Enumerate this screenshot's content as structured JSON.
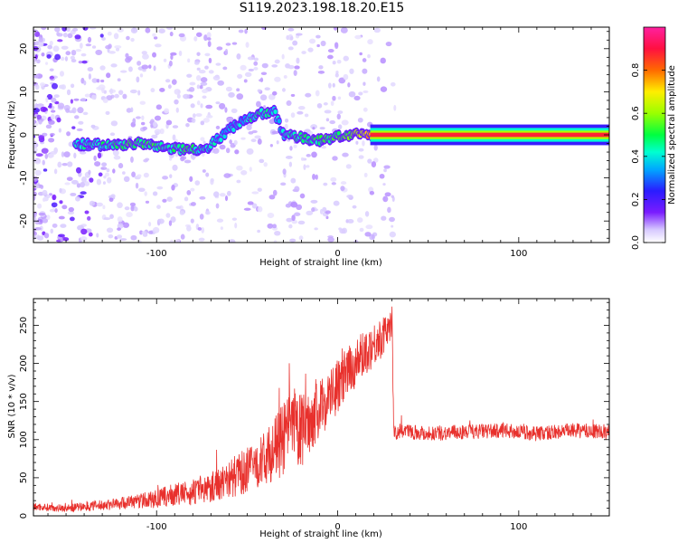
{
  "title": "S119.2023.198.18.20.E15",
  "colors": {
    "snr_line": "#e8302c",
    "carrier_core": "#ff2a55"
  },
  "chart_data": [
    {
      "type": "heatmap",
      "xlabel": "Height of straight line (km)",
      "ylabel": "Frequency (Hz)",
      "xlim": [
        -168,
        150
      ],
      "ylim": [
        -25,
        25
      ],
      "xticks": [
        -100,
        0,
        100
      ],
      "yticks": [
        -20,
        -10,
        0,
        10,
        20
      ],
      "colorbar": {
        "label": "Normalized spectral amplitude",
        "range": [
          0,
          1
        ],
        "ticks": [
          0.0,
          0.2,
          0.4,
          0.6,
          0.8
        ]
      },
      "ridge": [
        {
          "x": -142,
          "f": -2.2,
          "a": 0.35
        },
        {
          "x": -125,
          "f": -2.4,
          "a": 0.4
        },
        {
          "x": -110,
          "f": -2.0,
          "a": 0.45
        },
        {
          "x": -95,
          "f": -3.0,
          "a": 0.4
        },
        {
          "x": -82,
          "f": -3.4,
          "a": 0.42
        },
        {
          "x": -72,
          "f": -3.0,
          "a": 0.35
        },
        {
          "x": -62,
          "f": 0.5,
          "a": 0.3
        },
        {
          "x": -52,
          "f": 3.5,
          "a": 0.32
        },
        {
          "x": -42,
          "f": 5.0,
          "a": 0.4
        },
        {
          "x": -35,
          "f": 5.5,
          "a": 0.3
        },
        {
          "x": -30,
          "f": 0.0,
          "a": 0.35
        },
        {
          "x": -20,
          "f": -0.5,
          "a": 0.4
        },
        {
          "x": -12,
          "f": -1.5,
          "a": 0.42
        },
        {
          "x": -2,
          "f": -0.5,
          "a": 0.45
        },
        {
          "x": 8,
          "f": 0.0,
          "a": 0.5
        },
        {
          "x": 18,
          "f": 0.0,
          "a": 0.7
        },
        {
          "x": 30,
          "f": 0.0,
          "a": 0.85
        },
        {
          "x": 150,
          "f": 0.0,
          "a": 0.85
        }
      ]
    },
    {
      "type": "line",
      "xlabel": "Height of straight line (km)",
      "ylabel": "SNR (10 * v/v)",
      "xlim": [
        -168,
        150
      ],
      "ylim": [
        0,
        285
      ],
      "xticks": [
        -100,
        0,
        100
      ],
      "yticks": [
        0,
        50,
        100,
        150,
        200,
        250
      ],
      "series": [
        {
          "x": [
            -168,
            -150,
            -130,
            -115,
            -100,
            -90,
            -80,
            -70,
            -60,
            -50,
            -40,
            -32,
            -25,
            -20,
            -15,
            -10,
            -5,
            0,
            5,
            10,
            15,
            20,
            25,
            30,
            31,
            32,
            33,
            35,
            50,
            70,
            90,
            110,
            130,
            150
          ],
          "y": [
            12,
            10,
            14,
            18,
            22,
            28,
            30,
            38,
            48,
            60,
            75,
            95,
            115,
            110,
            125,
            140,
            155,
            170,
            185,
            200,
            215,
            225,
            235,
            255,
            110,
            108,
            110,
            112,
            108,
            110,
            112,
            108,
            112,
            110
          ],
          "noise": [
            5,
            5,
            7,
            9,
            12,
            15,
            16,
            20,
            26,
            30,
            35,
            45,
            55,
            50,
            40,
            38,
            38,
            35,
            35,
            32,
            30,
            30,
            25,
            20,
            10,
            10,
            10,
            10,
            10,
            10,
            10,
            10,
            10,
            10
          ]
        }
      ]
    }
  ]
}
